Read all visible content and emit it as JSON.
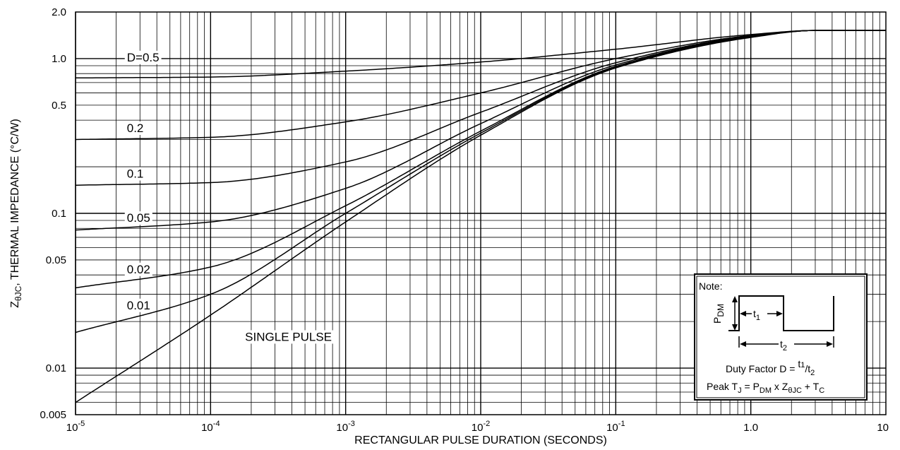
{
  "chart_data": {
    "type": "line",
    "xlabel": "RECTANGULAR PULSE DURATION (SECONDS)",
    "ylabel": {
      "z": "Z",
      "sub": "θJC",
      "rest": ", THERMAL IMPEDANCE (°C/W)"
    },
    "xscale": "log",
    "yscale": "log",
    "xlim": [
      1e-05,
      10
    ],
    "ylim": [
      0.005,
      2.0
    ],
    "grid": true,
    "xticks": [
      {
        "value": 1e-05,
        "base": "10",
        "exp": "-5"
      },
      {
        "value": 0.0001,
        "base": "10",
        "exp": "-4"
      },
      {
        "value": 0.001,
        "base": "10",
        "exp": "-3"
      },
      {
        "value": 0.01,
        "base": "10",
        "exp": "-2"
      },
      {
        "value": 0.1,
        "base": "10",
        "exp": "-1"
      },
      {
        "value": 1,
        "label": "1.0"
      },
      {
        "value": 10,
        "label": "10"
      }
    ],
    "yticks": [
      {
        "value": 2.0,
        "label": "2.0"
      },
      {
        "value": 1.0,
        "label": "1.0"
      },
      {
        "value": 0.5,
        "label": "0.5"
      },
      {
        "value": 0.1,
        "label": "0.1"
      },
      {
        "value": 0.05,
        "label": "0.05"
      },
      {
        "value": 0.01,
        "label": "0.01"
      },
      {
        "value": 0.005,
        "label": "0.005"
      }
    ],
    "series": [
      {
        "name": "D=0.5",
        "x": [
          1e-05,
          0.0001,
          0.001,
          0.01,
          0.1,
          1,
          3,
          10
        ],
        "y": [
          0.75,
          0.76,
          0.83,
          0.95,
          1.15,
          1.43,
          1.52,
          1.52
        ]
      },
      {
        "name": "0.2",
        "x": [
          1e-05,
          0.0001,
          0.001,
          0.01,
          0.1,
          1,
          3,
          10
        ],
        "y": [
          0.3,
          0.31,
          0.39,
          0.6,
          1.0,
          1.41,
          1.52,
          1.52
        ]
      },
      {
        "name": "0.1",
        "x": [
          1e-05,
          0.0001,
          0.001,
          0.01,
          0.1,
          1,
          3,
          10
        ],
        "y": [
          0.152,
          0.158,
          0.215,
          0.45,
          0.94,
          1.4,
          1.52,
          1.52
        ]
      },
      {
        "name": "0.05",
        "x": [
          1e-05,
          0.0001,
          0.001,
          0.01,
          0.1,
          1,
          3,
          10
        ],
        "y": [
          0.078,
          0.088,
          0.145,
          0.38,
          0.91,
          1.39,
          1.52,
          1.52
        ]
      },
      {
        "name": "0.02",
        "x": [
          1e-05,
          0.0001,
          0.001,
          0.01,
          0.1,
          1,
          3,
          10
        ],
        "y": [
          0.033,
          0.045,
          0.112,
          0.34,
          0.89,
          1.38,
          1.52,
          1.52
        ]
      },
      {
        "name": "0.01",
        "x": [
          1e-05,
          0.0001,
          0.001,
          0.01,
          0.1,
          1,
          3,
          10
        ],
        "y": [
          0.017,
          0.03,
          0.1,
          0.33,
          0.88,
          1.38,
          1.52,
          1.52
        ]
      },
      {
        "name": "SINGLE PULSE",
        "x": [
          1e-05,
          0.0001,
          0.001,
          0.01,
          0.1,
          1,
          3,
          10
        ],
        "y": [
          0.006,
          0.022,
          0.088,
          0.32,
          0.87,
          1.37,
          1.52,
          1.52
        ]
      }
    ],
    "curve_labels": [
      {
        "text": "D=0.5",
        "x": 2.4e-05,
        "y": 0.96
      },
      {
        "text": "0.2",
        "x": 2.4e-05,
        "y": 0.335
      },
      {
        "text": "0.1",
        "x": 2.4e-05,
        "y": 0.17
      },
      {
        "text": "0.05",
        "x": 2.4e-05,
        "y": 0.088
      },
      {
        "text": "0.02",
        "x": 2.4e-05,
        "y": 0.041
      },
      {
        "text": "0.01",
        "x": 2.4e-05,
        "y": 0.024
      },
      {
        "text": "SINGLE PULSE",
        "x": 0.00018,
        "y": 0.015
      }
    ],
    "note": {
      "title": "Note:",
      "pdm": {
        "base": "P",
        "sub": "DM"
      },
      "t1": {
        "base": "t",
        "sub": "1"
      },
      "t2": {
        "base": "t",
        "sub": "2"
      },
      "duty_prefix": "Duty Factor  D = ",
      "duty_num": {
        "base": "t",
        "sub": "1"
      },
      "duty_den": {
        "base": "t",
        "sub": "2"
      },
      "peak": {
        "a": "Peak T",
        "a_sub": "J",
        "b": " = P",
        "b_sub": "DM",
        "c": " x Z",
        "c_sub": "θJC",
        "d": " + T",
        "d_sub": "C"
      }
    }
  }
}
